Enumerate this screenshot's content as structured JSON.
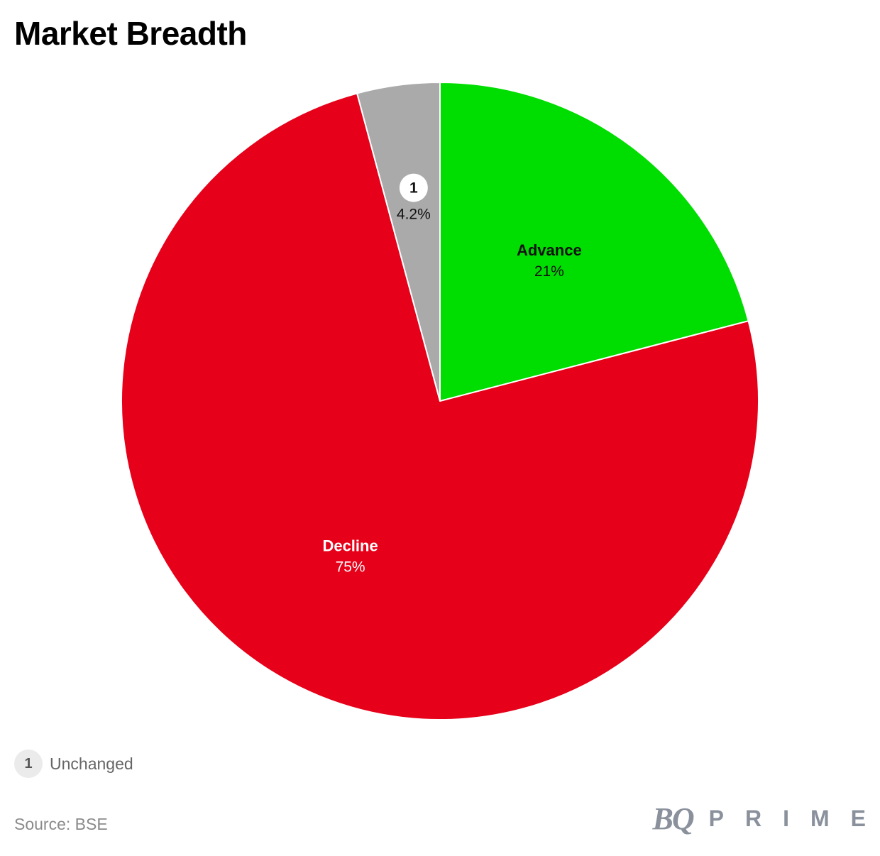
{
  "chart_data": {
    "type": "pie",
    "title": "Market Breadth",
    "slices": [
      {
        "label": "Advance",
        "value": 21,
        "display": "21%",
        "color": "#00dd00",
        "label_color": "#111111"
      },
      {
        "label": "Decline",
        "value": 75,
        "display": "75%",
        "color": "#e60019",
        "label_color": "#ffffff"
      },
      {
        "label": "Unchanged",
        "value": 4.2,
        "display": "4.2%",
        "color": "#aaaaaa",
        "label_color": "#111111",
        "marker": "1"
      }
    ],
    "footnotes": [
      {
        "marker": "1",
        "text": "Unchanged"
      }
    ],
    "source": "Source: BSE"
  },
  "brand": {
    "logo_text_bq": "BQ",
    "logo_text_prime": "PRIME"
  }
}
